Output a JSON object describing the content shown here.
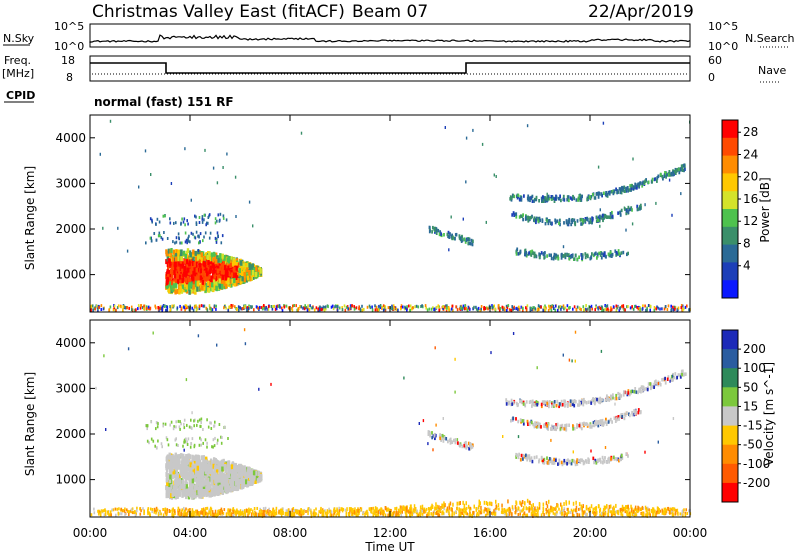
{
  "header": {
    "title": "Christmas Valley East (fitACF)",
    "beam": "Beam 07",
    "date": "22/Apr/2019"
  },
  "summary": {
    "nsky_label": "N.Sky",
    "nsearch_label": "N.Search",
    "nsky_ticks": [
      "10^5",
      "10^0"
    ],
    "nsearch_ticks": [
      "10^5",
      "10^0"
    ],
    "freq_label_1": "Freq.",
    "freq_label_2": "[MHz]",
    "nave_label": "Nave",
    "freq_ticks": [
      "18",
      "8"
    ],
    "nave_ticks": [
      "60",
      "0"
    ],
    "cpid_label": "CPID",
    "cpid_text": "normal (fast) 151 RF"
  },
  "chart_data": [
    {
      "type": "heatmap",
      "title": "",
      "ylabel": "Slant Range [km]",
      "xlabel": "Time UT",
      "xlim": [
        "00:00",
        "24:00"
      ],
      "ylim": [
        180,
        4500
      ],
      "y_ticks": [
        "1000",
        "2000",
        "3000",
        "4000"
      ],
      "x_ticks": [
        "00:00",
        "04:00",
        "08:00",
        "12:00",
        "16:00",
        "20:00",
        "00:00"
      ],
      "colorbar_label": "Power [dB]",
      "colorbar_ticks": [
        "28",
        "24",
        "20",
        "16",
        "12",
        "8",
        "4"
      ],
      "colorbar_colors": [
        "#ff0000",
        "#ff4a00",
        "#ff8c00",
        "#ffc800",
        "#d4e32a",
        "#4ec24e",
        "#3a8f6a",
        "#2a6a96",
        "#1c3fb8",
        "#0a18ff"
      ],
      "regions": [
        {
          "t0": 3.0,
          "t1": 6.8,
          "r0": 620,
          "r1": 1450,
          "level": "high"
        },
        {
          "t0": 2.2,
          "t1": 5.5,
          "r0": 1700,
          "r1": 2400,
          "level": "low"
        },
        {
          "t0": 14.3,
          "t1": 15.2,
          "r0": 1800,
          "r1": 2200,
          "level": "mid"
        },
        {
          "t0": 16.5,
          "t1": 23.9,
          "r0": 1400,
          "r1": 3500,
          "level": "low"
        }
      ]
    },
    {
      "type": "heatmap",
      "title": "",
      "ylabel": "Slant Range [km]",
      "xlabel": "Time UT",
      "xlim": [
        "00:00",
        "24:00"
      ],
      "ylim": [
        180,
        4500
      ],
      "y_ticks": [
        "1000",
        "2000",
        "3000",
        "4000"
      ],
      "x_ticks": [
        "00:00",
        "04:00",
        "08:00",
        "12:00",
        "16:00",
        "20:00",
        "00:00"
      ],
      "colorbar_label": "Velocity [m s^-1]",
      "colorbar_ticks": [
        "200",
        "100",
        "50",
        "15",
        "-15",
        "-50",
        "-100",
        "-200"
      ],
      "colorbar_colors": [
        "#1c2ab8",
        "#2a5ca0",
        "#2e8a5a",
        "#7cc83c",
        "#c8c8c8",
        "#ffc800",
        "#ff8c00",
        "#ff5a00",
        "#ff0000"
      ],
      "regions": [
        {
          "t0": 3.0,
          "t1": 6.8,
          "r0": 620,
          "r1": 1450,
          "level": "ground"
        },
        {
          "t0": 2.2,
          "t1": 5.5,
          "r0": 1700,
          "r1": 2400,
          "level": "mixed"
        },
        {
          "t0": 16.5,
          "t1": 23.9,
          "r0": 1400,
          "r1": 3500,
          "level": "mixed"
        }
      ]
    }
  ],
  "x_axis_title": "Time UT",
  "time_ticks": [
    "00:00",
    "04:00",
    "08:00",
    "12:00",
    "16:00",
    "20:00",
    "00:00"
  ]
}
